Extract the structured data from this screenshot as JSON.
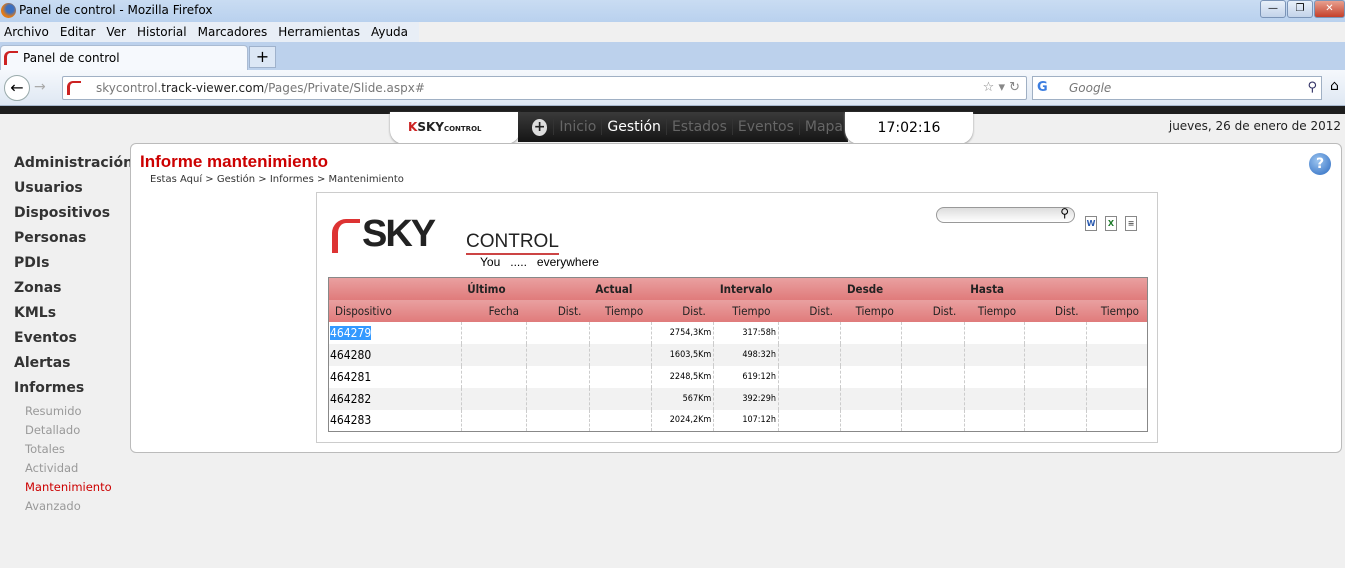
{
  "window": {
    "title": "Panel de control - Mozilla Firefox",
    "min": "—",
    "max": "❐",
    "close": "✕"
  },
  "menu": [
    "Archivo",
    "Editar",
    "Ver",
    "Historial",
    "Marcadores",
    "Herramientas",
    "Ayuda"
  ],
  "tab": {
    "title": "Panel de control",
    "new": "+"
  },
  "url": {
    "pre": "skycontrol.",
    "host": "track-viewer.com",
    "path": "/Pages/Private/Slide.aspx#"
  },
  "search": {
    "engine": "G",
    "placeholder": "Google"
  },
  "topnav": {
    "logo": "SKY",
    "logo2": "CONTROL",
    "items": [
      "Inicio",
      "Gestión",
      "Estados",
      "Eventos",
      "Mapa"
    ],
    "active": "Gestión",
    "clock": "17:02:16"
  },
  "date": "jueves, 26 de enero de 2012",
  "sidebar": {
    "items": [
      "Administración",
      "Usuarios",
      "Dispositivos",
      "Personas",
      "PDIs",
      "Zonas",
      "KMLs",
      "Eventos",
      "Alertas",
      "Informes"
    ],
    "subitems": [
      "Resumido",
      "Detallado",
      "Totales",
      "Actividad",
      "Mantenimiento",
      "Avanzado"
    ],
    "active": "Mantenimiento"
  },
  "page": {
    "title": "Informe mantenimiento",
    "breadcrumb": "Estas Aquí > Gestión > Informes > Mantenimiento",
    "help": "?"
  },
  "report": {
    "brand": {
      "sky": "SKY",
      "control": "CONTROL",
      "tagline": "You   .....   everywhere"
    },
    "export": [
      "W",
      "X",
      "≡"
    ],
    "groups": [
      "",
      "Último",
      "",
      "Actual",
      "",
      "Intervalo",
      "",
      "Desde",
      "",
      "Hasta",
      "",
      ""
    ],
    "columns": [
      "Dispositivo",
      "Fecha",
      "Dist.",
      "Tiempo",
      "Dist.",
      "Tiempo",
      "Dist.",
      "Tiempo",
      "Dist.",
      "Tiempo",
      "Dist.",
      "Tiempo"
    ],
    "rows": [
      [
        "464279",
        "",
        "",
        "",
        "2754,3Km",
        "317:58h",
        "",
        "",
        "",
        "",
        "",
        ""
      ],
      [
        "464280",
        "",
        "",
        "",
        "1603,5Km",
        "498:32h",
        "",
        "",
        "",
        "",
        "",
        ""
      ],
      [
        "464281",
        "",
        "",
        "",
        "2248,5Km",
        "619:12h",
        "",
        "",
        "",
        "",
        "",
        ""
      ],
      [
        "464282",
        "",
        "",
        "",
        "567Km",
        "392:29h",
        "",
        "",
        "",
        "",
        "",
        ""
      ],
      [
        "464283",
        "",
        "",
        "",
        "2024,2Km",
        "107:12h",
        "",
        "",
        "",
        "",
        "",
        ""
      ]
    ]
  },
  "colors": {
    "accent": "#cc0000",
    "header": "#e07b7b"
  }
}
